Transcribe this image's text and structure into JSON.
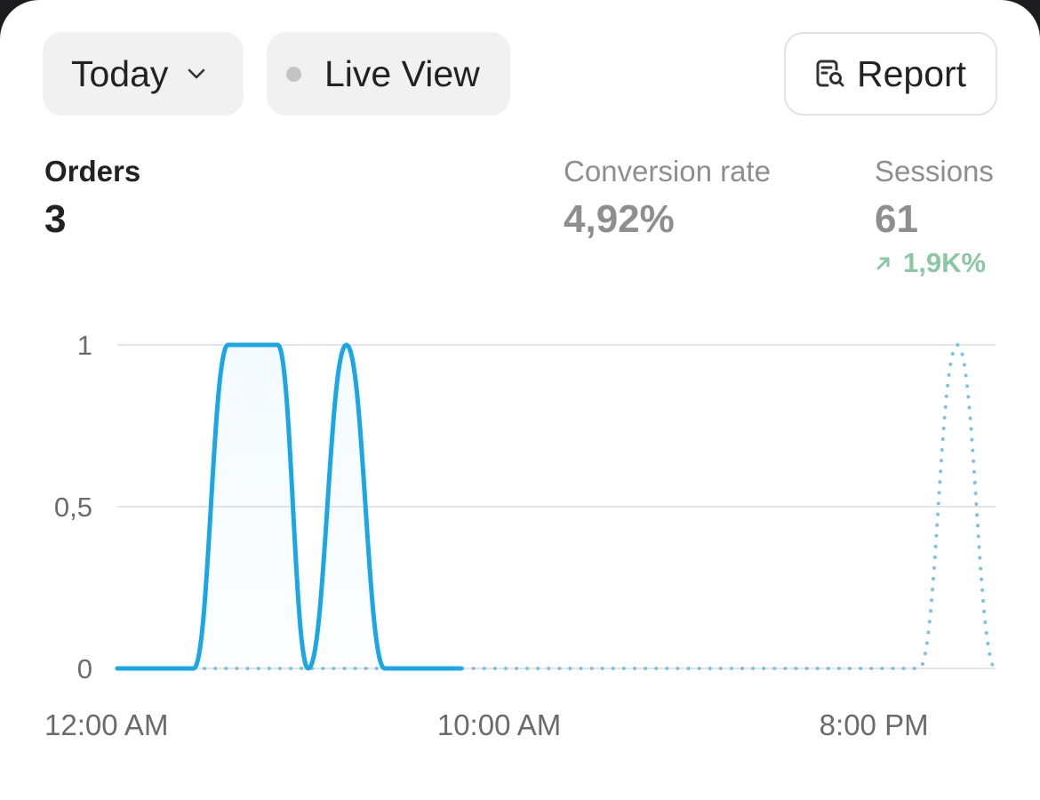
{
  "toolbar": {
    "date_range": "Today",
    "live_view": "Live View",
    "report": "Report"
  },
  "metrics": [
    {
      "label": "Orders",
      "value": "3",
      "active": true
    },
    {
      "label": "Conversion rate",
      "value": "4,92%",
      "active": false
    },
    {
      "label": "Sessions",
      "value": "61",
      "change": "1,9K%",
      "change_direction": "up",
      "active": false
    }
  ],
  "colors": {
    "line_current": "#1ba7e4",
    "line_comparison": "#7cc3e3",
    "change_positive": "#8cc7a4",
    "grid": "#e4e4e4"
  },
  "chart_data": {
    "type": "line",
    "ylim": [
      0,
      1
    ],
    "y_ticks": [
      "1",
      "0,5",
      "0"
    ],
    "x_ticks": [
      "12:00 AM",
      "10:00 AM",
      "8:00 PM"
    ],
    "x_range_hours": [
      0,
      23
    ],
    "series": [
      {
        "style": "solid",
        "points": [
          [
            0,
            0
          ],
          [
            2,
            0
          ],
          [
            2.9,
            1
          ],
          [
            4.2,
            1
          ],
          [
            5,
            0
          ],
          [
            6,
            1
          ],
          [
            7,
            0
          ],
          [
            9,
            0
          ]
        ]
      },
      {
        "style": "dotted",
        "points": [
          [
            2,
            0
          ],
          [
            21,
            0
          ],
          [
            22,
            1
          ],
          [
            23,
            0
          ]
        ]
      }
    ]
  }
}
